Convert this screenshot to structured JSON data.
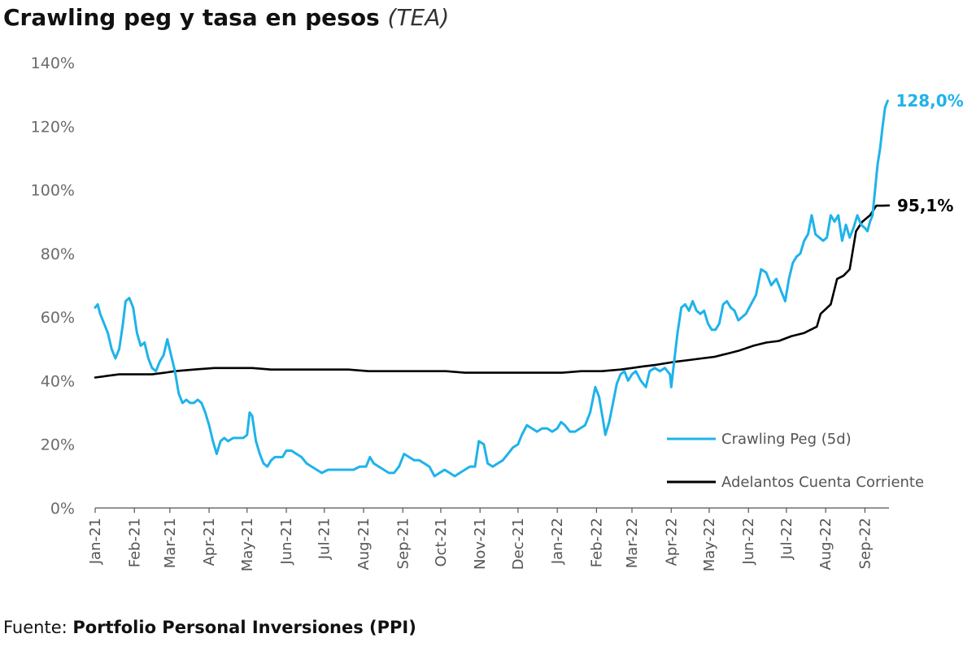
{
  "title": {
    "main": "Crawling peg y tasa en pesos",
    "sub": "(TEA)"
  },
  "footer": {
    "prefix": "Fuente:",
    "source": "Portfolio Personal Inversiones (PPI)"
  },
  "colors": {
    "crawling": "#1fb3ea",
    "adelantos": "#000000",
    "axis": "#555555"
  },
  "chart_data": {
    "type": "line",
    "title": "Crawling peg y tasa en pesos (TEA)",
    "xlabel": "",
    "ylabel": "",
    "ylim": [
      0,
      140
    ],
    "grid": false,
    "legend_position": "bottom-right",
    "yticks": [
      0,
      20,
      40,
      60,
      80,
      100,
      120,
      140
    ],
    "ytick_labels": [
      "0%",
      "20%",
      "40%",
      "60%",
      "80%",
      "100%",
      "120%",
      "140%"
    ],
    "x_start": "2021-01-01",
    "x_end": "2022-09-20",
    "xtick_labels": [
      "Jan-21",
      "Feb-21",
      "Mar-21",
      "Apr-21",
      "May-21",
      "Jun-21",
      "Jul-21",
      "Aug-21",
      "Sep-21",
      "Oct-21",
      "Nov-21",
      "Dec-21",
      "Jan-22",
      "Feb-22",
      "Mar-22",
      "Apr-22",
      "May-22",
      "Jun-22",
      "Jul-22",
      "Aug-22",
      "Sep-22"
    ],
    "xtick_dates": [
      "2021-01-01",
      "2021-02-01",
      "2021-03-01",
      "2021-04-01",
      "2021-05-01",
      "2021-06-01",
      "2021-07-01",
      "2021-08-01",
      "2021-09-01",
      "2021-10-01",
      "2021-11-01",
      "2021-12-01",
      "2022-01-01",
      "2022-02-01",
      "2022-03-01",
      "2022-04-01",
      "2022-05-01",
      "2022-06-01",
      "2022-07-01",
      "2022-08-01",
      "2022-09-01"
    ],
    "series": [
      {
        "name": "Crawling Peg (5d)",
        "color": "#1fb3ea",
        "end_label": "128,0%",
        "points": [
          [
            "2021-01-01",
            63
          ],
          [
            "2021-01-03",
            64
          ],
          [
            "2021-01-05",
            61
          ],
          [
            "2021-01-08",
            58
          ],
          [
            "2021-01-11",
            55
          ],
          [
            "2021-01-14",
            50
          ],
          [
            "2021-01-17",
            47
          ],
          [
            "2021-01-20",
            50
          ],
          [
            "2021-01-23",
            58
          ],
          [
            "2021-01-25",
            65
          ],
          [
            "2021-01-28",
            66
          ],
          [
            "2021-01-31",
            63
          ],
          [
            "2021-02-03",
            55
          ],
          [
            "2021-02-06",
            51
          ],
          [
            "2021-02-09",
            52
          ],
          [
            "2021-02-12",
            47
          ],
          [
            "2021-02-15",
            44
          ],
          [
            "2021-02-18",
            43
          ],
          [
            "2021-02-21",
            46
          ],
          [
            "2021-02-24",
            48
          ],
          [
            "2021-02-27",
            53
          ],
          [
            "2021-03-02",
            48
          ],
          [
            "2021-03-05",
            43
          ],
          [
            "2021-03-08",
            36
          ],
          [
            "2021-03-11",
            33
          ],
          [
            "2021-03-14",
            34
          ],
          [
            "2021-03-17",
            33
          ],
          [
            "2021-03-20",
            33
          ],
          [
            "2021-03-23",
            34
          ],
          [
            "2021-03-26",
            33
          ],
          [
            "2021-03-29",
            30
          ],
          [
            "2021-04-01",
            26
          ],
          [
            "2021-04-04",
            21
          ],
          [
            "2021-04-07",
            17
          ],
          [
            "2021-04-10",
            21
          ],
          [
            "2021-04-13",
            22
          ],
          [
            "2021-04-16",
            21
          ],
          [
            "2021-04-20",
            22
          ],
          [
            "2021-04-24",
            22
          ],
          [
            "2021-04-28",
            22
          ],
          [
            "2021-05-01",
            23
          ],
          [
            "2021-05-03",
            30
          ],
          [
            "2021-05-05",
            29
          ],
          [
            "2021-05-08",
            21
          ],
          [
            "2021-05-11",
            17
          ],
          [
            "2021-05-14",
            14
          ],
          [
            "2021-05-17",
            13
          ],
          [
            "2021-05-20",
            15
          ],
          [
            "2021-05-23",
            16
          ],
          [
            "2021-05-26",
            16
          ],
          [
            "2021-05-29",
            16
          ],
          [
            "2021-06-01",
            18
          ],
          [
            "2021-06-05",
            18
          ],
          [
            "2021-06-09",
            17
          ],
          [
            "2021-06-13",
            16
          ],
          [
            "2021-06-17",
            14
          ],
          [
            "2021-06-21",
            13
          ],
          [
            "2021-06-25",
            12
          ],
          [
            "2021-06-29",
            11
          ],
          [
            "2021-07-04",
            12
          ],
          [
            "2021-07-09",
            12
          ],
          [
            "2021-07-14",
            12
          ],
          [
            "2021-07-19",
            12
          ],
          [
            "2021-07-24",
            12
          ],
          [
            "2021-07-29",
            13
          ],
          [
            "2021-08-03",
            13
          ],
          [
            "2021-08-06",
            16
          ],
          [
            "2021-08-09",
            14
          ],
          [
            "2021-08-13",
            13
          ],
          [
            "2021-08-17",
            12
          ],
          [
            "2021-08-21",
            11
          ],
          [
            "2021-08-25",
            11
          ],
          [
            "2021-08-29",
            13
          ],
          [
            "2021-09-02",
            17
          ],
          [
            "2021-09-06",
            16
          ],
          [
            "2021-09-10",
            15
          ],
          [
            "2021-09-14",
            15
          ],
          [
            "2021-09-18",
            14
          ],
          [
            "2021-09-22",
            13
          ],
          [
            "2021-09-26",
            10
          ],
          [
            "2021-09-30",
            11
          ],
          [
            "2021-10-04",
            12
          ],
          [
            "2021-10-08",
            11
          ],
          [
            "2021-10-12",
            10
          ],
          [
            "2021-10-16",
            11
          ],
          [
            "2021-10-20",
            12
          ],
          [
            "2021-10-24",
            13
          ],
          [
            "2021-10-28",
            13
          ],
          [
            "2021-10-31",
            21
          ],
          [
            "2021-11-04",
            20
          ],
          [
            "2021-11-07",
            14
          ],
          [
            "2021-11-11",
            13
          ],
          [
            "2021-11-15",
            14
          ],
          [
            "2021-11-19",
            15
          ],
          [
            "2021-11-23",
            17
          ],
          [
            "2021-11-27",
            19
          ],
          [
            "2021-12-01",
            20
          ],
          [
            "2021-12-04",
            23
          ],
          [
            "2021-12-08",
            26
          ],
          [
            "2021-12-12",
            25
          ],
          [
            "2021-12-16",
            24
          ],
          [
            "2021-12-20",
            25
          ],
          [
            "2021-12-24",
            25
          ],
          [
            "2021-12-28",
            24
          ],
          [
            "2022-01-01",
            25
          ],
          [
            "2022-01-04",
            27
          ],
          [
            "2022-01-07",
            26
          ],
          [
            "2022-01-11",
            24
          ],
          [
            "2022-01-15",
            24
          ],
          [
            "2022-01-19",
            25
          ],
          [
            "2022-01-23",
            26
          ],
          [
            "2022-01-27",
            30
          ],
          [
            "2022-01-31",
            38
          ],
          [
            "2022-02-03",
            35
          ],
          [
            "2022-02-06",
            28
          ],
          [
            "2022-02-08",
            23
          ],
          [
            "2022-02-11",
            27
          ],
          [
            "2022-02-14",
            33
          ],
          [
            "2022-02-17",
            39
          ],
          [
            "2022-02-20",
            42
          ],
          [
            "2022-02-23",
            43
          ],
          [
            "2022-02-26",
            40
          ],
          [
            "2022-03-01",
            42
          ],
          [
            "2022-03-04",
            43
          ],
          [
            "2022-03-08",
            40
          ],
          [
            "2022-03-12",
            38
          ],
          [
            "2022-03-15",
            43
          ],
          [
            "2022-03-19",
            44
          ],
          [
            "2022-03-23",
            43
          ],
          [
            "2022-03-27",
            44
          ],
          [
            "2022-03-31",
            42
          ],
          [
            "2022-04-01",
            38
          ],
          [
            "2022-04-03",
            45
          ],
          [
            "2022-04-06",
            55
          ],
          [
            "2022-04-09",
            63
          ],
          [
            "2022-04-12",
            64
          ],
          [
            "2022-04-15",
            62
          ],
          [
            "2022-04-18",
            65
          ],
          [
            "2022-04-21",
            62
          ],
          [
            "2022-04-24",
            61
          ],
          [
            "2022-04-27",
            62
          ],
          [
            "2022-04-30",
            58
          ],
          [
            "2022-05-03",
            56
          ],
          [
            "2022-05-06",
            56
          ],
          [
            "2022-05-09",
            58
          ],
          [
            "2022-05-12",
            64
          ],
          [
            "2022-05-15",
            65
          ],
          [
            "2022-05-18",
            63
          ],
          [
            "2022-05-21",
            62
          ],
          [
            "2022-05-24",
            59
          ],
          [
            "2022-05-27",
            60
          ],
          [
            "2022-05-30",
            61
          ],
          [
            "2022-06-03",
            64
          ],
          [
            "2022-06-07",
            67
          ],
          [
            "2022-06-11",
            75
          ],
          [
            "2022-06-15",
            74
          ],
          [
            "2022-06-19",
            70
          ],
          [
            "2022-06-23",
            72
          ],
          [
            "2022-06-27",
            68
          ],
          [
            "2022-06-30",
            65
          ],
          [
            "2022-07-03",
            72
          ],
          [
            "2022-07-06",
            77
          ],
          [
            "2022-07-09",
            79
          ],
          [
            "2022-07-12",
            80
          ],
          [
            "2022-07-15",
            84
          ],
          [
            "2022-07-18",
            86
          ],
          [
            "2022-07-21",
            92
          ],
          [
            "2022-07-24",
            86
          ],
          [
            "2022-07-27",
            85
          ],
          [
            "2022-07-30",
            84
          ],
          [
            "2022-08-02",
            85
          ],
          [
            "2022-08-05",
            92
          ],
          [
            "2022-08-08",
            90
          ],
          [
            "2022-08-11",
            92
          ],
          [
            "2022-08-14",
            84
          ],
          [
            "2022-08-17",
            89
          ],
          [
            "2022-08-20",
            85
          ],
          [
            "2022-08-23",
            88
          ],
          [
            "2022-08-26",
            92
          ],
          [
            "2022-08-29",
            89
          ],
          [
            "2022-09-01",
            88
          ],
          [
            "2022-09-03",
            87
          ],
          [
            "2022-09-05",
            90
          ],
          [
            "2022-09-07",
            92
          ],
          [
            "2022-09-09",
            100
          ],
          [
            "2022-09-11",
            108
          ],
          [
            "2022-09-13",
            113
          ],
          [
            "2022-09-15",
            120
          ],
          [
            "2022-09-17",
            126
          ],
          [
            "2022-09-19",
            128
          ]
        ]
      },
      {
        "name": "Adelantos Cuenta Corriente",
        "color": "#000000",
        "end_label": "95,1%",
        "points": [
          [
            "2021-01-01",
            41
          ],
          [
            "2021-01-10",
            41.5
          ],
          [
            "2021-01-20",
            42
          ],
          [
            "2021-02-01",
            42
          ],
          [
            "2021-02-15",
            42
          ],
          [
            "2021-02-25",
            42.5
          ],
          [
            "2021-03-05",
            43
          ],
          [
            "2021-03-20",
            43.5
          ],
          [
            "2021-04-05",
            44
          ],
          [
            "2021-04-20",
            44
          ],
          [
            "2021-05-05",
            44
          ],
          [
            "2021-05-20",
            43.5
          ],
          [
            "2021-06-05",
            43.5
          ],
          [
            "2021-06-20",
            43.5
          ],
          [
            "2021-07-05",
            43.5
          ],
          [
            "2021-07-20",
            43.5
          ],
          [
            "2021-08-05",
            43
          ],
          [
            "2021-08-20",
            43
          ],
          [
            "2021-09-05",
            43
          ],
          [
            "2021-09-20",
            43
          ],
          [
            "2021-10-05",
            43
          ],
          [
            "2021-10-20",
            42.5
          ],
          [
            "2021-11-05",
            42.5
          ],
          [
            "2021-11-20",
            42.5
          ],
          [
            "2021-12-05",
            42.5
          ],
          [
            "2021-12-20",
            42.5
          ],
          [
            "2022-01-05",
            42.5
          ],
          [
            "2022-01-20",
            43
          ],
          [
            "2022-02-05",
            43
          ],
          [
            "2022-02-20",
            43.5
          ],
          [
            "2022-03-01",
            44
          ],
          [
            "2022-03-10",
            44.5
          ],
          [
            "2022-03-20",
            45
          ],
          [
            "2022-03-28",
            45.5
          ],
          [
            "2022-04-05",
            46
          ],
          [
            "2022-04-15",
            46.5
          ],
          [
            "2022-04-25",
            47
          ],
          [
            "2022-05-05",
            47.5
          ],
          [
            "2022-05-15",
            48.5
          ],
          [
            "2022-05-25",
            49.5
          ],
          [
            "2022-06-05",
            51
          ],
          [
            "2022-06-15",
            52
          ],
          [
            "2022-06-25",
            52.5
          ],
          [
            "2022-07-05",
            54
          ],
          [
            "2022-07-15",
            55
          ],
          [
            "2022-07-25",
            57
          ],
          [
            "2022-07-28",
            61
          ],
          [
            "2022-08-05",
            64
          ],
          [
            "2022-08-10",
            72
          ],
          [
            "2022-08-15",
            73
          ],
          [
            "2022-08-20",
            75
          ],
          [
            "2022-08-25",
            87
          ],
          [
            "2022-08-30",
            90
          ],
          [
            "2022-09-05",
            92
          ],
          [
            "2022-09-10",
            95
          ],
          [
            "2022-09-15",
            95
          ],
          [
            "2022-09-20",
            95.1
          ]
        ]
      }
    ]
  }
}
